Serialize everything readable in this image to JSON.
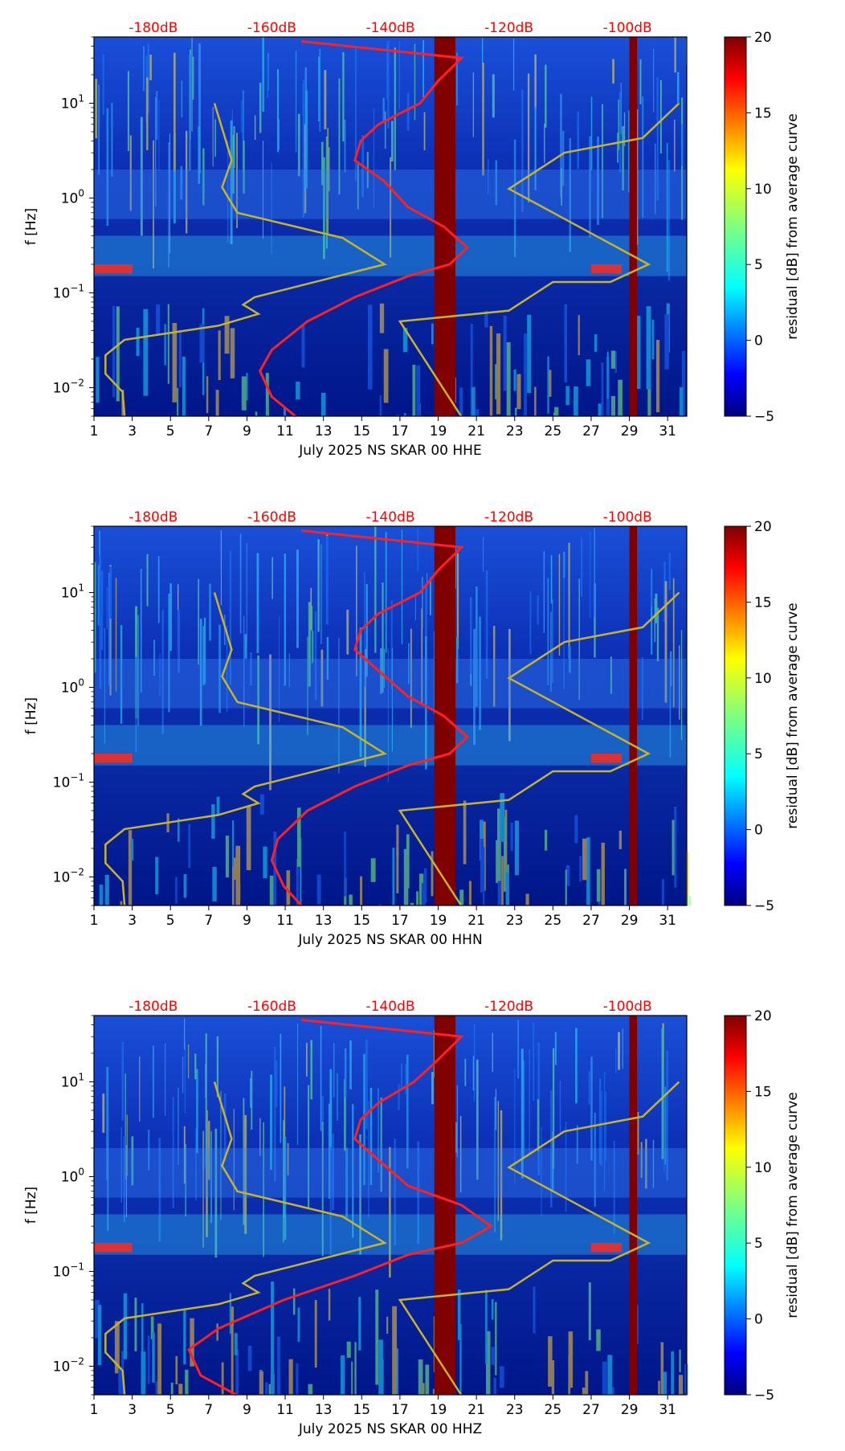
{
  "chart_data": [
    {
      "type": "heatmap",
      "title": "",
      "xlabel": "July 2025 NS SKAR 00 HHE",
      "ylabel": "f [Hz]",
      "x_ticks": [
        "1",
        "3",
        "5",
        "7",
        "9",
        "11",
        "13",
        "15",
        "17",
        "19",
        "21",
        "23",
        "25",
        "27",
        "29",
        "31"
      ],
      "x_range": [
        1,
        32
      ],
      "y_range": [
        0.005,
        50
      ],
      "y_scale": "log",
      "y_ticks": [
        {
          "base": "10",
          "exp": "−2",
          "value": 0.01
        },
        {
          "base": "10",
          "exp": "−1",
          "value": 0.1
        },
        {
          "base": "10",
          "exp": "0",
          "value": 1
        },
        {
          "base": "10",
          "exp": "1",
          "value": 10
        }
      ],
      "top_axis_labels": [
        "-180dB",
        "-160dB",
        "-140dB",
        "-120dB",
        "-100dB"
      ],
      "colorbar": {
        "label": "residual [dB] from average curve",
        "ticks": [
          "−5",
          "0",
          "5",
          "10",
          "15",
          "20"
        ],
        "range": [
          -5,
          20
        ]
      },
      "dark_red_bands": [
        [
          18.8,
          19.9
        ],
        [
          29.0,
          29.4
        ]
      ],
      "series": [
        {
          "name": "average noise curve (dB, top axis)",
          "color": "#ff2020",
          "points": [
            [
              -156,
              0.005
            ],
            [
              -160,
              0.008
            ],
            [
              -162,
              0.015
            ],
            [
              -160,
              0.025
            ],
            [
              -154,
              0.05
            ],
            [
              -146,
              0.09
            ],
            [
              -137,
              0.15
            ],
            [
              -130,
              0.2
            ],
            [
              -127,
              0.3
            ],
            [
              -131,
              0.5
            ],
            [
              -137,
              0.8
            ],
            [
              -141,
              1.5
            ],
            [
              -146,
              2.5
            ],
            [
              -145,
              4
            ],
            [
              -142,
              6
            ],
            [
              -135,
              10
            ],
            [
              -132,
              17
            ],
            [
              -128,
              30
            ],
            [
              -155,
              45
            ]
          ]
        },
        {
          "name": "reference curve (yellow)",
          "color": "#c8b428",
          "points": [
            [
              2.6,
              0.005
            ],
            [
              2.5,
              0.009
            ],
            [
              1.6,
              0.014
            ],
            [
              1.6,
              0.022
            ],
            [
              2.6,
              0.032
            ],
            [
              7.5,
              0.045
            ],
            [
              9.6,
              0.06
            ],
            [
              8.8,
              0.075
            ],
            [
              9.4,
              0.09
            ],
            [
              16.2,
              0.2
            ],
            [
              14,
              0.38
            ],
            [
              8.5,
              0.7
            ],
            [
              7.7,
              1.3
            ],
            [
              8.2,
              2.5
            ],
            [
              7.9,
              4
            ],
            [
              7.3,
              10
            ]
          ],
          "branch_2": [
            [
              20.2,
              0.005
            ],
            [
              17.0,
              0.05
            ],
            [
              22.7,
              0.065
            ],
            [
              25.0,
              0.13
            ],
            [
              28.0,
              0.13
            ],
            [
              30.0,
              0.2
            ],
            [
              22.7,
              1.25
            ],
            [
              25.6,
              3
            ],
            [
              29.7,
              4.3
            ],
            [
              31.6,
              10
            ]
          ]
        }
      ]
    },
    {
      "type": "heatmap",
      "title": "",
      "xlabel": "July 2025 NS SKAR 00 HHN",
      "ylabel": "f [Hz]",
      "x_ticks": [
        "1",
        "3",
        "5",
        "7",
        "9",
        "11",
        "13",
        "15",
        "17",
        "19",
        "21",
        "23",
        "25",
        "27",
        "29",
        "31"
      ],
      "x_range": [
        1,
        32
      ],
      "y_range": [
        0.005,
        50
      ],
      "y_scale": "log",
      "y_ticks": [
        {
          "base": "10",
          "exp": "−2",
          "value": 0.01
        },
        {
          "base": "10",
          "exp": "−1",
          "value": 0.1
        },
        {
          "base": "10",
          "exp": "0",
          "value": 1
        },
        {
          "base": "10",
          "exp": "1",
          "value": 10
        }
      ],
      "top_axis_labels": [
        "-180dB",
        "-160dB",
        "-140dB",
        "-120dB",
        "-100dB"
      ],
      "colorbar": {
        "label": "residual [dB] from average curve",
        "ticks": [
          "−5",
          "0",
          "5",
          "10",
          "15",
          "20"
        ],
        "range": [
          -5,
          20
        ]
      },
      "dark_red_bands": [
        [
          18.8,
          19.9
        ],
        [
          29.0,
          29.4
        ]
      ],
      "series": [
        {
          "name": "average noise curve (dB, top axis)",
          "color": "#ff2020",
          "points": [
            [
              -155,
              0.005
            ],
            [
              -158,
              0.008
            ],
            [
              -160,
              0.015
            ],
            [
              -159,
              0.025
            ],
            [
              -154,
              0.05
            ],
            [
              -146,
              0.09
            ],
            [
              -137,
              0.15
            ],
            [
              -130,
              0.2
            ],
            [
              -127,
              0.3
            ],
            [
              -131,
              0.5
            ],
            [
              -137,
              0.8
            ],
            [
              -142,
              1.5
            ],
            [
              -146,
              2.5
            ],
            [
              -145,
              4
            ],
            [
              -142,
              6
            ],
            [
              -135,
              10
            ],
            [
              -132,
              17
            ],
            [
              -128,
              30
            ],
            [
              -155,
              45
            ]
          ]
        },
        {
          "name": "reference curve (yellow)",
          "color": "#c8b428",
          "points": [
            [
              2.6,
              0.005
            ],
            [
              2.5,
              0.009
            ],
            [
              1.6,
              0.014
            ],
            [
              1.6,
              0.022
            ],
            [
              2.6,
              0.032
            ],
            [
              7.5,
              0.045
            ],
            [
              9.6,
              0.06
            ],
            [
              8.8,
              0.075
            ],
            [
              9.4,
              0.09
            ],
            [
              16.2,
              0.2
            ],
            [
              14,
              0.38
            ],
            [
              8.5,
              0.7
            ],
            [
              7.7,
              1.3
            ],
            [
              8.2,
              2.5
            ],
            [
              7.9,
              4
            ],
            [
              7.3,
              10
            ]
          ],
          "branch_2": [
            [
              20.2,
              0.005
            ],
            [
              17.0,
              0.05
            ],
            [
              22.7,
              0.065
            ],
            [
              25.0,
              0.13
            ],
            [
              28.0,
              0.13
            ],
            [
              30.0,
              0.2
            ],
            [
              22.7,
              1.25
            ],
            [
              25.6,
              3
            ],
            [
              29.7,
              4.3
            ],
            [
              31.6,
              10
            ]
          ]
        }
      ]
    },
    {
      "type": "heatmap",
      "title": "",
      "xlabel": "July 2025 NS SKAR 00 HHZ",
      "ylabel": "f [Hz]",
      "x_ticks": [
        "1",
        "3",
        "5",
        "7",
        "9",
        "11",
        "13",
        "15",
        "17",
        "19",
        "21",
        "23",
        "25",
        "27",
        "29",
        "31"
      ],
      "x_range": [
        1,
        32
      ],
      "y_range": [
        0.005,
        50
      ],
      "y_scale": "log",
      "y_ticks": [
        {
          "base": "10",
          "exp": "−2",
          "value": 0.01
        },
        {
          "base": "10",
          "exp": "−1",
          "value": 0.1
        },
        {
          "base": "10",
          "exp": "0",
          "value": 1
        },
        {
          "base": "10",
          "exp": "1",
          "value": 10
        }
      ],
      "top_axis_labels": [
        "-180dB",
        "-160dB",
        "-140dB",
        "-120dB",
        "-100dB"
      ],
      "colorbar": {
        "label": "residual [dB] from average curve",
        "ticks": [
          "−5",
          "0",
          "5",
          "10",
          "15",
          "20"
        ],
        "range": [
          -5,
          20
        ]
      },
      "dark_red_bands": [
        [
          18.8,
          19.9
        ],
        [
          29.0,
          29.4
        ]
      ],
      "series": [
        {
          "name": "average noise curve (dB, top axis)",
          "color": "#ff2020",
          "points": [
            [
              -166,
              0.005
            ],
            [
              -172,
              0.008
            ],
            [
              -174,
              0.015
            ],
            [
              -169,
              0.025
            ],
            [
              -158,
              0.05
            ],
            [
              -146,
              0.09
            ],
            [
              -137,
              0.15
            ],
            [
              -128,
              0.2
            ],
            [
              -123,
              0.3
            ],
            [
              -128,
              0.5
            ],
            [
              -137,
              0.8
            ],
            [
              -142,
              1.5
            ],
            [
              -146,
              2.5
            ],
            [
              -145,
              4
            ],
            [
              -142,
              6
            ],
            [
              -136,
              10
            ],
            [
              -132,
              17
            ],
            [
              -128,
              30
            ],
            [
              -155,
              45
            ]
          ]
        },
        {
          "name": "reference curve (yellow)",
          "color": "#c8b428",
          "points": [
            [
              2.6,
              0.005
            ],
            [
              2.5,
              0.009
            ],
            [
              1.6,
              0.014
            ],
            [
              1.6,
              0.022
            ],
            [
              2.6,
              0.032
            ],
            [
              7.5,
              0.045
            ],
            [
              9.6,
              0.06
            ],
            [
              8.8,
              0.075
            ],
            [
              9.4,
              0.09
            ],
            [
              16.2,
              0.2
            ],
            [
              14,
              0.38
            ],
            [
              8.5,
              0.7
            ],
            [
              7.7,
              1.3
            ],
            [
              8.2,
              2.5
            ],
            [
              7.9,
              4
            ],
            [
              7.3,
              10
            ]
          ],
          "branch_2": [
            [
              20.2,
              0.005
            ],
            [
              17.0,
              0.05
            ],
            [
              22.7,
              0.065
            ],
            [
              25.0,
              0.13
            ],
            [
              28.0,
              0.13
            ],
            [
              30.0,
              0.2
            ],
            [
              22.7,
              1.25
            ],
            [
              25.6,
              3
            ],
            [
              29.7,
              4.3
            ],
            [
              31.6,
              10
            ]
          ]
        }
      ]
    }
  ],
  "colors": {
    "background": "#00208c",
    "band": "#800000",
    "red_curve": "#ff2020",
    "yellow_curve": "#c8b428",
    "top_label": "#ff0000"
  }
}
